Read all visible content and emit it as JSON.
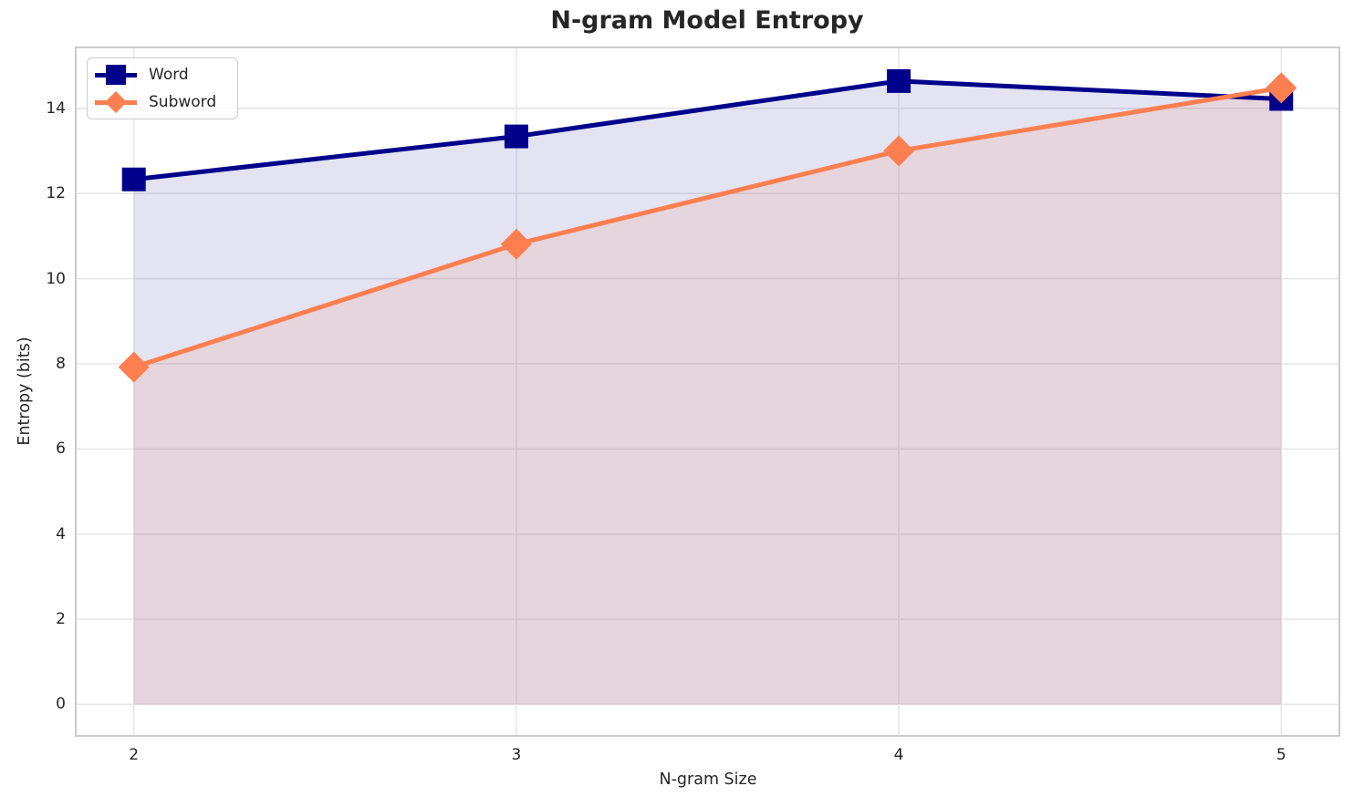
{
  "chart_data": {
    "type": "line",
    "title": "N-gram Model Entropy",
    "xlabel": "N-gram Size",
    "ylabel": "Entropy (bits)",
    "x": [
      2,
      3,
      4,
      5
    ],
    "series": [
      {
        "name": "Word",
        "values": [
          12.33,
          13.34,
          14.64,
          14.22
        ],
        "color": "#00008B",
        "marker": "square",
        "fill_to_zero": true,
        "fill_opacity": 0.11
      },
      {
        "name": "Subword",
        "values": [
          7.92,
          10.81,
          13.0,
          14.48
        ],
        "color": "#FF7F50",
        "marker": "diamond",
        "fill_to_zero": true,
        "fill_opacity": 0.13
      }
    ],
    "x_ticks": [
      "2",
      "3",
      "4",
      "5"
    ],
    "x_tick_values": [
      2,
      3,
      4,
      5
    ],
    "y_ticks": [
      "0",
      "2",
      "4",
      "6",
      "8",
      "10",
      "12",
      "14"
    ],
    "y_tick_values": [
      0,
      2,
      4,
      6,
      8,
      10,
      12,
      14
    ],
    "xlim": [
      1.848,
      5.152
    ],
    "ylim": [
      -0.74,
      15.43
    ],
    "grid": true,
    "legend_position": "upper-left",
    "style": {
      "grid_color": "#E8E8E8",
      "spine_color": "#CBCBCB",
      "text_color": "#262626",
      "legend_border": "#CCCCCC"
    }
  },
  "legend": {
    "items": [
      {
        "label": "Word"
      },
      {
        "label": "Subword"
      }
    ]
  }
}
